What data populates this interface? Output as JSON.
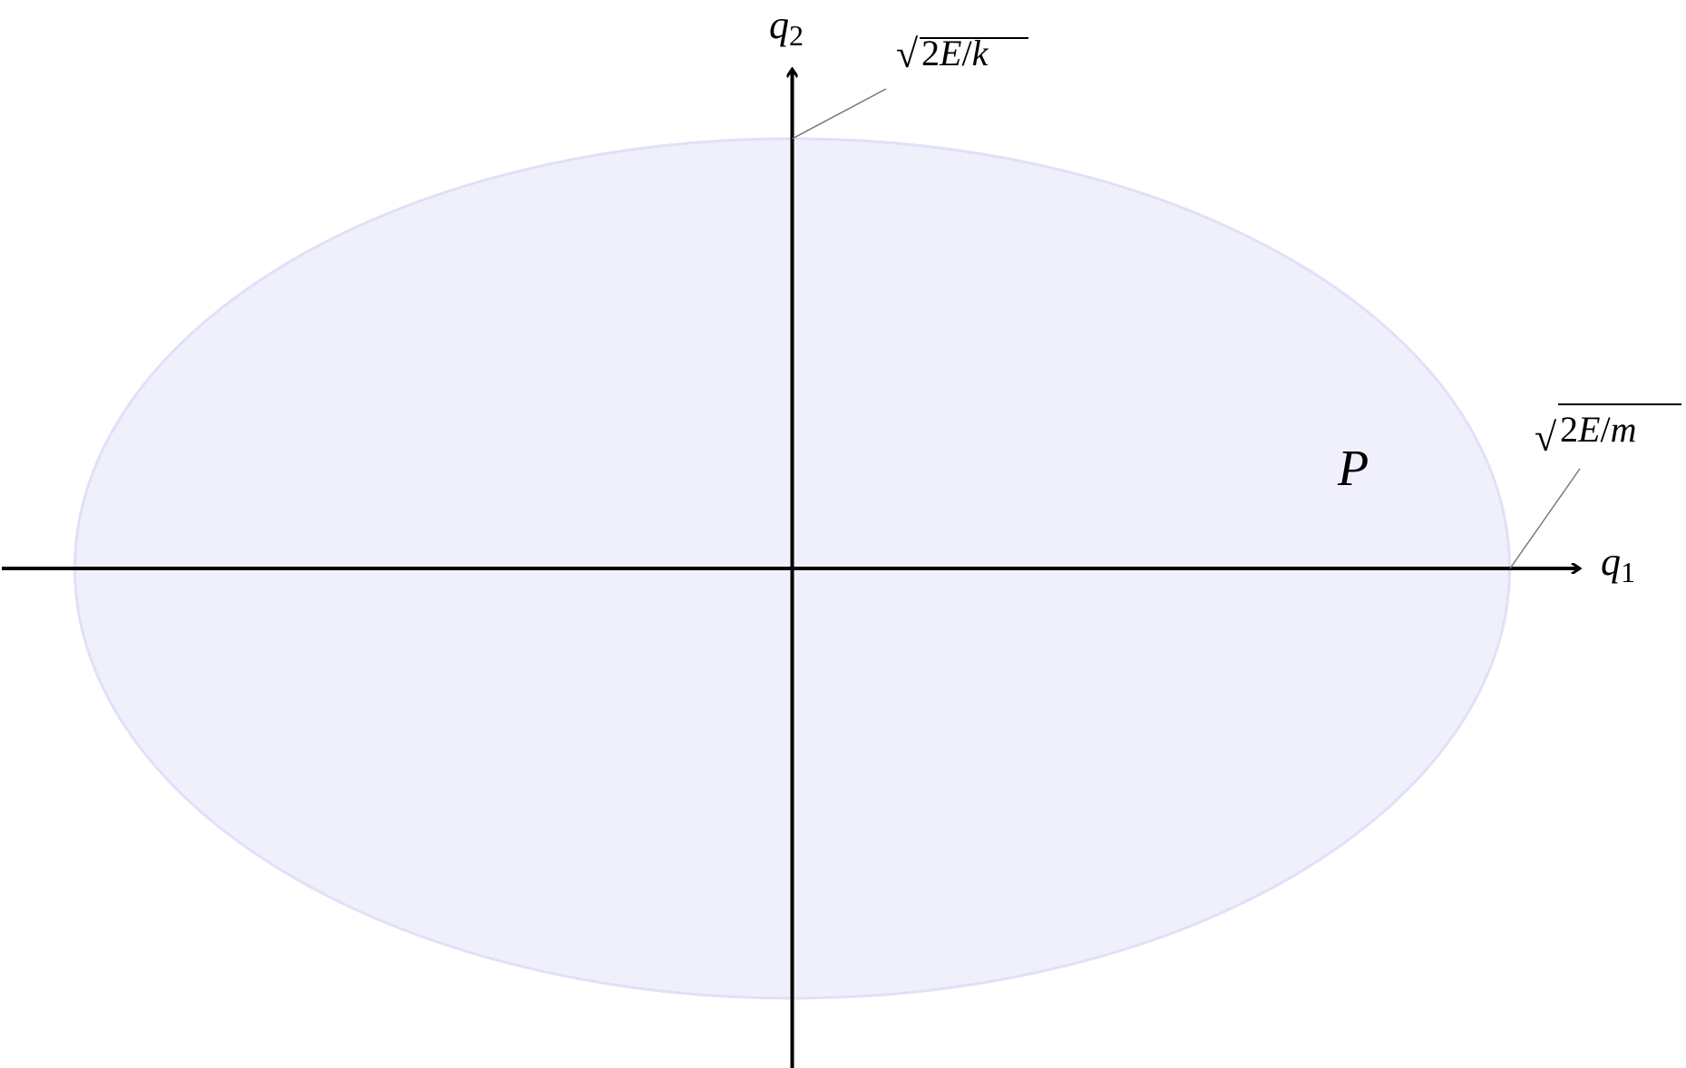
{
  "diagram": {
    "axes": {
      "x_label": "q",
      "x_label_sub": "1",
      "y_label": "q",
      "y_label_sub": "2"
    },
    "region": {
      "label": "P",
      "label_color": "#0000ff",
      "fill_color": "#f0f0fc",
      "edge_color": "#e0e0f8"
    },
    "annotations": {
      "q2_intercept": {
        "sqrt": "√",
        "num": "2",
        "var": "E",
        "slash": "/",
        "den": "k"
      },
      "q1_intercept": {
        "sqrt": "√",
        "num": "2",
        "var": "E",
        "slash": "/",
        "den": "m"
      }
    }
  }
}
